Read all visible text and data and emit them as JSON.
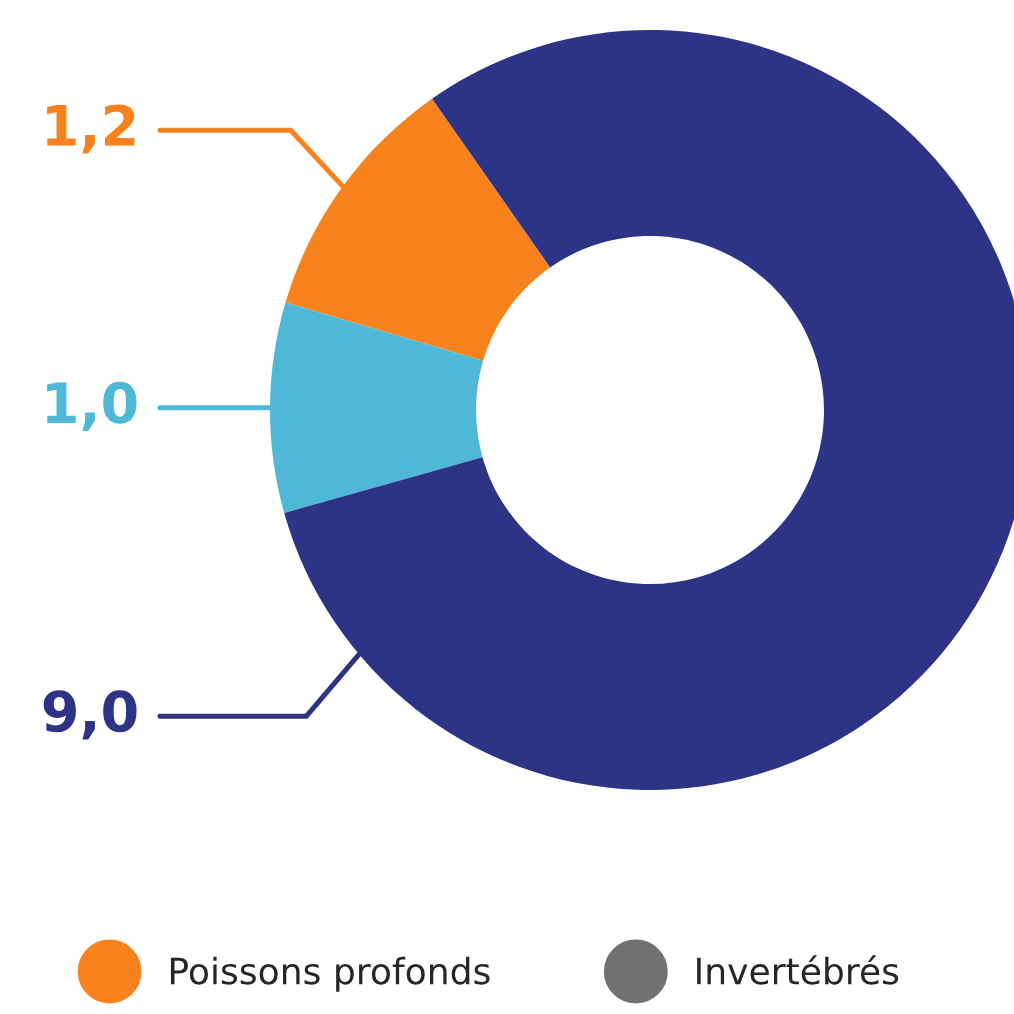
{
  "chart_data": {
    "type": "donut",
    "categories": [
      "Poissons profonds",
      null,
      null,
      "Invertébrés"
    ],
    "values": [
      1.2,
      1.0,
      9.0,
      null
    ],
    "colors": [
      "#f7821e",
      "#4fb8d6",
      "#2d3485",
      "#717171"
    ],
    "value_labels": [
      "1,2",
      "1,0",
      "9,0",
      null
    ],
    "legend": "bottom"
  }
}
